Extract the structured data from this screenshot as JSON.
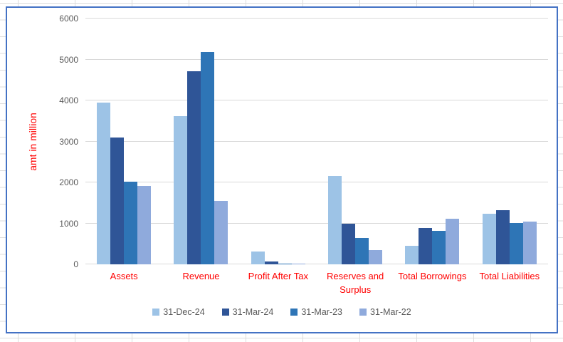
{
  "chart_data": {
    "type": "bar",
    "title": "",
    "xlabel": "",
    "ylabel": "amt in million",
    "ylim": [
      0,
      6000
    ],
    "yticks": [
      0,
      1000,
      2000,
      3000,
      4000,
      5000,
      6000
    ],
    "grid": true,
    "legend_position": "bottom",
    "categories": [
      "Assets",
      "Revenue",
      "Profit After Tax",
      "Reserves and Surplus",
      "Total Borrowings",
      "Total Liabilities"
    ],
    "series": [
      {
        "name": "31-Dec-24",
        "color": "#9DC3E6",
        "values": [
          3950,
          3620,
          310,
          2150,
          460,
          1230
        ]
      },
      {
        "name": "31-Mar-24",
        "color": "#2F5597",
        "values": [
          3100,
          4720,
          75,
          990,
          890,
          1330
        ]
      },
      {
        "name": "31-Mar-23",
        "color": "#2E75B6",
        "values": [
          2010,
          5180,
          25,
          640,
          820,
          1010
        ]
      },
      {
        "name": "31-Mar-22",
        "color": "#8FAADC",
        "values": [
          1920,
          1540,
          15,
          350,
          1110,
          1040
        ]
      }
    ]
  },
  "styles": {
    "frame_border_color": "#4472C4",
    "chart_gridline_color": "#D9D9D9",
    "sheet_gridline_color": "#DCDCDC",
    "axis_text_color": "#595959",
    "red_label_color": "#FF0000"
  }
}
